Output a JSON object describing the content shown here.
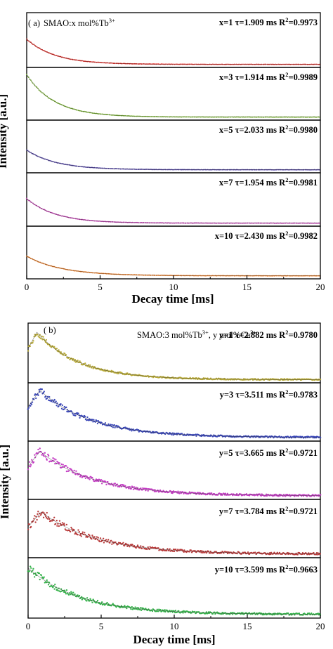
{
  "figure": {
    "panel_a": {
      "label": "( a)",
      "header": {
        "prefix": "SMAO:x mol%Tb",
        "superscript": "3+"
      },
      "xlabel": "Decay time [ms]",
      "ylabel": "Intensity [a.u.]",
      "xticks": [
        "0",
        "5",
        "10",
        "15",
        "20"
      ]
    },
    "panel_b": {
      "label": "( b)",
      "header": {
        "prefix": "SMAO:3 mol%Tb",
        "sup1": "3+",
        "mid": ",   y mol%Ce",
        "sup2": "3+"
      },
      "xlabel": "Decay time [ms]",
      "ylabel": "Intensity [a.u.]",
      "xticks": [
        "0",
        "5",
        "10",
        "15",
        "20"
      ]
    }
  },
  "chart_data": [
    {
      "type": "scatter",
      "title": "SMAO:x mol%Tb3+",
      "xlabel": "Decay time [ms]",
      "ylabel": "Intensity [a.u.]",
      "xlim": [
        0,
        20
      ],
      "layout": "stacked panels",
      "series": [
        {
          "name": "x=1",
          "label": "x=1 τ=1.909 ms R",
          "r2": "=0.9973",
          "tau_ms": 1.909,
          "R2": 0.9973,
          "color": "#e8231e",
          "peak_time_ms": 0,
          "start_level": 0.55,
          "baseline": 0.02,
          "noise": 0.01
        },
        {
          "name": "x=3",
          "label": "x=3 τ=1.914 ms R",
          "r2": "=0.9989",
          "tau_ms": 1.914,
          "R2": 0.9989,
          "color": "#7cb82f",
          "peak_time_ms": 0,
          "start_level": 0.95,
          "baseline": 0.02,
          "noise": 0.01
        },
        {
          "name": "x=5",
          "label": "x=5 τ=2.033 ms R",
          "r2": "=0.9980",
          "tau_ms": 2.033,
          "R2": 0.998,
          "color": "#4d3ea8",
          "peak_time_ms": 0,
          "start_level": 0.45,
          "baseline": 0.02,
          "noise": 0.01
        },
        {
          "name": "x=7",
          "label": "x=7 τ=1.954 ms R",
          "r2": "=0.9981",
          "tau_ms": 1.954,
          "R2": 0.9981,
          "color": "#c63bb4",
          "peak_time_ms": 0,
          "start_level": 0.55,
          "baseline": 0.02,
          "noise": 0.01
        },
        {
          "name": "x=10",
          "label": "x=10  τ=2.430 ms R",
          "r2": "=0.9982",
          "tau_ms": 2.43,
          "R2": 0.9982,
          "color": "#f07a1d",
          "peak_time_ms": 0,
          "start_level": 0.45,
          "baseline": 0.02,
          "noise": 0.01
        }
      ]
    },
    {
      "type": "scatter",
      "title": "SMAO:3 mol%Tb3+, y mol%Ce3+",
      "xlabel": "Decay time [ms]",
      "ylabel": "Intensity [a.u.]",
      "xlim": [
        0,
        20
      ],
      "layout": "stacked panels",
      "series": [
        {
          "name": "y=1",
          "label": "y=1 τ=2.882 ms R",
          "r2": "=0.9780",
          "tau_ms": 2.882,
          "R2": 0.978,
          "color": "#b8aa36",
          "peak_time_ms": 0.6,
          "start_level": 0.92,
          "baseline": 0.02,
          "noise": 0.05
        },
        {
          "name": "y=3",
          "label": "y=3 τ=3.511 ms R",
          "r2": "=0.9783",
          "tau_ms": 3.511,
          "R2": 0.9783,
          "color": "#3a47b8",
          "peak_time_ms": 0.8,
          "start_level": 0.95,
          "baseline": 0.03,
          "noise": 0.06
        },
        {
          "name": "y=5",
          "label": "y=5 τ=3.665 ms R",
          "r2": "=0.9721",
          "tau_ms": 3.665,
          "R2": 0.9721,
          "color": "#c43cc4",
          "peak_time_ms": 0.8,
          "start_level": 0.9,
          "baseline": 0.03,
          "noise": 0.07
        },
        {
          "name": "y=7",
          "label": "y=7 τ=3.784 ms R",
          "r2": "=0.9721",
          "tau_ms": 3.784,
          "R2": 0.9721,
          "color": "#b83a3a",
          "peak_time_ms": 0.9,
          "start_level": 0.85,
          "baseline": 0.03,
          "noise": 0.08
        },
        {
          "name": "y=10",
          "label": "y=10 τ=3.599 ms R",
          "r2": "=0.9663",
          "tau_ms": 3.599,
          "R2": 0.9663,
          "color": "#35b24a",
          "peak_time_ms": 0,
          "start_level": 0.9,
          "baseline": 0.03,
          "noise": 0.07
        }
      ]
    }
  ]
}
